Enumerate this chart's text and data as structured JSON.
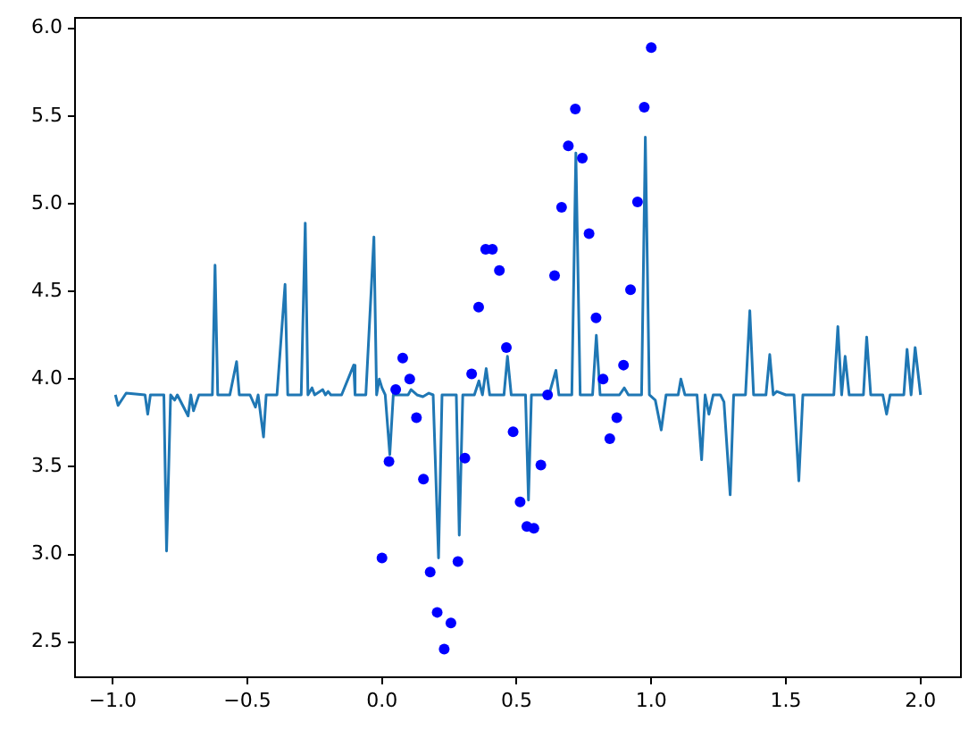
{
  "chart_data": {
    "type": "scatter",
    "xlim": [
      -1.14,
      2.15
    ],
    "ylim": [
      2.3,
      6.06
    ],
    "xticks": [
      {
        "value": -1,
        "label": "−1.0"
      },
      {
        "value": -0.5,
        "label": "−0.5"
      },
      {
        "value": 0,
        "label": "0.0"
      },
      {
        "value": 0.5,
        "label": "0.5"
      },
      {
        "value": 1,
        "label": "1.0"
      },
      {
        "value": 1.5,
        "label": "1.5"
      },
      {
        "value": 2,
        "label": "2.0"
      }
    ],
    "yticks": [
      {
        "value": 2.5,
        "label": "2.5"
      },
      {
        "value": 3,
        "label": "3.0"
      },
      {
        "value": 3.5,
        "label": "3.5"
      },
      {
        "value": 4,
        "label": "4.0"
      },
      {
        "value": 4.5,
        "label": "4.5"
      },
      {
        "value": 5,
        "label": "5.0"
      },
      {
        "value": 5.5,
        "label": "5.5"
      },
      {
        "value": 6,
        "label": "6.0"
      }
    ],
    "grid": false,
    "legend": false,
    "series": [
      {
        "type": "line",
        "color": "#1f77b4",
        "marker": "none",
        "line_style": "solid",
        "x": [
          -0.99,
          -0.98,
          -0.95,
          -0.88,
          -0.87,
          -0.86,
          -0.81,
          -0.8,
          -0.785,
          -0.77,
          -0.76,
          -0.72,
          -0.71,
          -0.7,
          -0.68,
          -0.63,
          -0.62,
          -0.61,
          -0.565,
          -0.54,
          -0.53,
          -0.49,
          -0.47,
          -0.46,
          -0.44,
          -0.43,
          -0.39,
          -0.36,
          -0.35,
          -0.3,
          -0.285,
          -0.275,
          -0.26,
          -0.25,
          -0.22,
          -0.21,
          -0.2,
          -0.19,
          -0.15,
          -0.105,
          -0.1,
          -0.06,
          -0.03,
          -0.02,
          -0.01,
          0.0,
          0.012,
          0.029,
          0.042,
          0.097,
          0.108,
          0.13,
          0.152,
          0.174,
          0.19,
          0.21,
          0.223,
          0.276,
          0.287,
          0.3,
          0.343,
          0.36,
          0.373,
          0.387,
          0.4,
          0.453,
          0.466,
          0.48,
          0.533,
          0.544,
          0.555,
          0.62,
          0.646,
          0.657,
          0.705,
          0.72,
          0.736,
          0.782,
          0.796,
          0.81,
          0.882,
          0.9,
          0.915,
          0.964,
          0.978,
          0.993,
          1.015,
          1.037,
          1.055,
          1.1,
          1.11,
          1.125,
          1.17,
          1.187,
          1.2,
          1.214,
          1.23,
          1.257,
          1.27,
          1.293,
          1.306,
          1.35,
          1.366,
          1.38,
          1.426,
          1.44,
          1.453,
          1.466,
          1.5,
          1.53,
          1.548,
          1.563,
          1.678,
          1.693,
          1.707,
          1.72,
          1.735,
          1.788,
          1.8,
          1.815,
          1.86,
          1.874,
          1.887,
          1.938,
          1.95,
          1.965,
          1.98,
          2.0
        ],
        "values": [
          3.91,
          3.85,
          3.92,
          3.91,
          3.8,
          3.91,
          3.91,
          3.02,
          3.91,
          3.88,
          3.91,
          3.79,
          3.91,
          3.82,
          3.91,
          3.91,
          4.65,
          3.91,
          3.91,
          4.1,
          3.91,
          3.91,
          3.84,
          3.91,
          3.67,
          3.91,
          3.91,
          4.54,
          3.91,
          3.91,
          4.89,
          3.91,
          3.95,
          3.91,
          3.94,
          3.91,
          3.93,
          3.91,
          3.91,
          4.08,
          3.91,
          3.91,
          4.81,
          3.91,
          4.0,
          3.95,
          3.91,
          3.57,
          3.91,
          3.91,
          3.94,
          3.91,
          3.9,
          3.92,
          3.91,
          2.98,
          3.91,
          3.91,
          3.11,
          3.91,
          3.91,
          3.99,
          3.91,
          4.06,
          3.91,
          3.91,
          4.13,
          3.91,
          3.91,
          3.31,
          3.91,
          3.91,
          4.05,
          3.91,
          3.91,
          5.29,
          3.91,
          3.91,
          4.25,
          3.91,
          3.91,
          3.95,
          3.91,
          3.91,
          5.38,
          3.91,
          3.88,
          3.71,
          3.91,
          3.91,
          4.0,
          3.91,
          3.91,
          3.54,
          3.91,
          3.8,
          3.91,
          3.91,
          3.87,
          3.34,
          3.91,
          3.91,
          4.39,
          3.91,
          3.91,
          4.14,
          3.91,
          3.93,
          3.91,
          3.91,
          3.42,
          3.91,
          3.91,
          4.3,
          3.91,
          4.13,
          3.91,
          3.91,
          4.24,
          3.91,
          3.91,
          3.8,
          3.91,
          3.91,
          4.17,
          3.91,
          4.18,
          3.91
        ]
      },
      {
        "type": "scatter",
        "color": "#0000ff",
        "marker": "circle",
        "x": [
          0,
          0.026,
          0.051,
          0.077,
          0.103,
          0.128,
          0.154,
          0.179,
          0.205,
          0.231,
          0.256,
          0.282,
          0.308,
          0.333,
          0.359,
          0.385,
          0.41,
          0.436,
          0.462,
          0.487,
          0.513,
          0.538,
          0.564,
          0.59,
          0.615,
          0.641,
          0.667,
          0.692,
          0.718,
          0.744,
          0.769,
          0.795,
          0.821,
          0.846,
          0.872,
          0.897,
          0.923,
          0.949,
          0.974,
          1.0
        ],
        "values": [
          2.98,
          3.53,
          3.94,
          4.12,
          4.0,
          3.78,
          3.43,
          2.9,
          2.67,
          2.46,
          2.61,
          2.96,
          3.55,
          4.03,
          4.41,
          4.74,
          4.74,
          4.62,
          4.18,
          3.7,
          3.3,
          3.16,
          3.15,
          3.51,
          3.91,
          4.59,
          4.98,
          5.33,
          5.54,
          5.26,
          4.83,
          4.35,
          4.0,
          3.66,
          3.78,
          4.08,
          4.51,
          5.01,
          5.55,
          5.89
        ]
      }
    ]
  }
}
